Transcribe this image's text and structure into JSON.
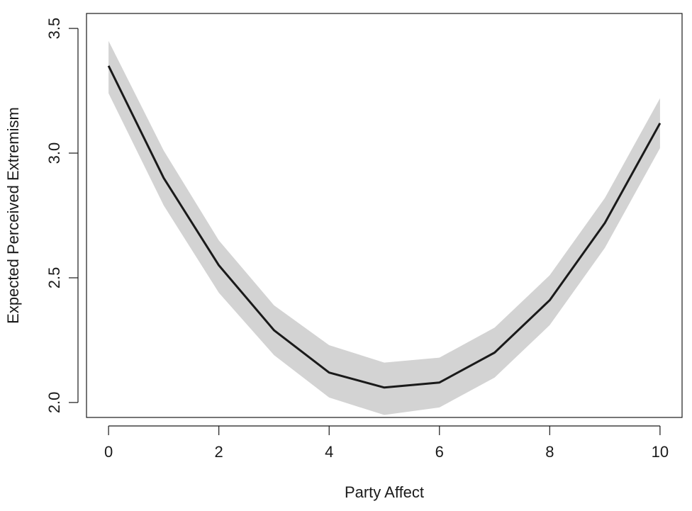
{
  "chart_data": {
    "type": "line",
    "title": "",
    "xlabel": "Party Affect",
    "ylabel": "Expected Perceived Extremism",
    "xlim": [
      -0.4,
      10.4
    ],
    "ylim": [
      1.94,
      3.56
    ],
    "x_ticks": [
      0,
      2,
      4,
      6,
      8,
      10
    ],
    "y_ticks": [
      2.0,
      2.5,
      3.0,
      3.5
    ],
    "x_tick_labels": [
      "0",
      "2",
      "4",
      "6",
      "8",
      "10"
    ],
    "y_tick_labels": [
      "2.0",
      "2.5",
      "3.0",
      "3.5"
    ],
    "grid": false,
    "legend": "none",
    "series": [
      {
        "x": [
          0,
          1,
          2,
          3,
          4,
          5,
          6,
          7,
          8,
          9,
          10
        ],
        "y": [
          3.35,
          2.9,
          2.55,
          2.29,
          2.12,
          2.06,
          2.08,
          2.2,
          2.41,
          2.72,
          3.12
        ],
        "lower": [
          3.24,
          2.79,
          2.44,
          2.19,
          2.02,
          1.95,
          1.98,
          2.1,
          2.31,
          2.62,
          3.02
        ],
        "upper": [
          3.45,
          3.01,
          2.65,
          2.39,
          2.23,
          2.16,
          2.18,
          2.3,
          2.51,
          2.82,
          3.22
        ],
        "line_color": "#1a1a1a",
        "band_color": "#d3d3d3"
      }
    ]
  }
}
